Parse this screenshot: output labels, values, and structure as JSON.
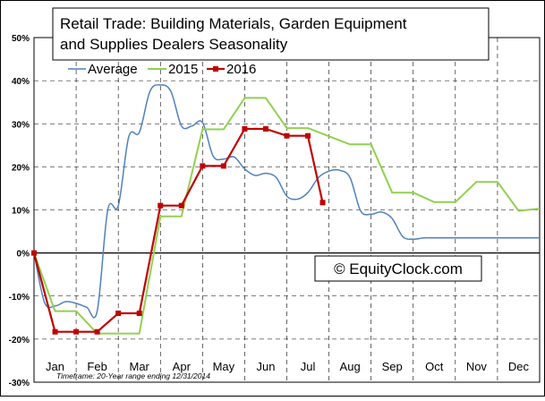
{
  "chart_data": {
    "type": "line",
    "title": "Retail Trade: Building Materials, Garden Equipment and Supplies Dealers Seasonality",
    "title_lines": [
      "Retail Trade: Building Materials, Garden Equipment",
      "and Supplies Dealers Seasonality"
    ],
    "xlabel": "",
    "ylabel": "",
    "footnote": "Timeframe: 20-Year range ending 12/31/2014",
    "watermark": "© EquityClock.com",
    "legend_position": "top-left",
    "grid": true,
    "ylim": [
      -30,
      50
    ],
    "yticks": [
      -30,
      -20,
      -10,
      0,
      10,
      20,
      30,
      40,
      50
    ],
    "ytick_labels": [
      "-30%",
      "-20%",
      "-10%",
      "0%",
      "10%",
      "20%",
      "30%",
      "40%",
      "50%"
    ],
    "xlim": [
      0,
      12
    ],
    "categories": [
      "Jan",
      "Feb",
      "Mar",
      "Apr",
      "May",
      "Jun",
      "Jul",
      "Aug",
      "Sep",
      "Oct",
      "Nov",
      "Dec"
    ],
    "series": [
      {
        "name": "Average",
        "color": "#4f81bd",
        "style": "smooth",
        "x": [
          0,
          0.25,
          0.5,
          0.75,
          1.0,
          1.25,
          1.5,
          1.75,
          2.0,
          2.25,
          2.5,
          2.75,
          3.0,
          3.25,
          3.5,
          3.75,
          4.0,
          4.25,
          4.5,
          4.75,
          5.0,
          5.25,
          5.5,
          5.75,
          6.0,
          6.25,
          6.5,
          6.75,
          7.0,
          7.25,
          7.5,
          7.75,
          8.0,
          8.25,
          8.5,
          8.75,
          9.0,
          9.25,
          9.5,
          9.75,
          10.0,
          10.25,
          10.5,
          10.75,
          11.0,
          11.25,
          11.5,
          11.75,
          12.0
        ],
        "y": [
          0,
          -11.5,
          -12.3,
          -11.3,
          -11.7,
          -12.6,
          -13.5,
          10.0,
          11.0,
          27.0,
          28.0,
          37.5,
          39.0,
          37.5,
          29.5,
          29.5,
          30.3,
          22.5,
          21.8,
          22.3,
          19.5,
          18.0,
          18.5,
          17.5,
          13.2,
          12.5,
          14.0,
          17.5,
          19.0,
          19.2,
          17.5,
          9.8,
          9.0,
          9.5,
          8.0,
          3.8,
          3.2,
          3.5,
          3.5,
          3.5,
          3.5,
          3.5,
          3.5,
          3.5,
          3.5,
          3.5,
          3.5,
          3.5,
          3.5
        ]
      },
      {
        "name": "2015",
        "color": "#92d050",
        "style": "step",
        "x": [
          0,
          0.5,
          1.0,
          1.5,
          2.5,
          3.0,
          3.5,
          4.0,
          4.5,
          5.0,
          5.5,
          6.0,
          6.5,
          7.5,
          8.0,
          8.5,
          9.0,
          9.5,
          10.0,
          10.5,
          11.0,
          11.5,
          12.0
        ],
        "y": [
          0,
          -13.5,
          -13.5,
          -18.7,
          -18.7,
          8.5,
          8.5,
          28.7,
          28.7,
          36.0,
          36.0,
          29.0,
          29.0,
          25.2,
          25.2,
          14.0,
          14.0,
          11.8,
          11.8,
          16.5,
          16.5,
          9.8,
          10.3
        ]
      },
      {
        "name": "2016",
        "color": "#c00000",
        "style": "markers",
        "x": [
          0,
          0.5,
          1.0,
          1.5,
          2.0,
          2.5,
          3.0,
          3.5,
          4.0,
          4.5,
          5.0,
          5.5,
          6.0,
          6.5,
          6.85
        ],
        "y": [
          0,
          -18.3,
          -18.3,
          -18.3,
          -14.0,
          -14.0,
          11.0,
          11.0,
          20.2,
          20.2,
          28.8,
          28.8,
          27.2,
          27.2,
          11.7
        ]
      }
    ]
  }
}
